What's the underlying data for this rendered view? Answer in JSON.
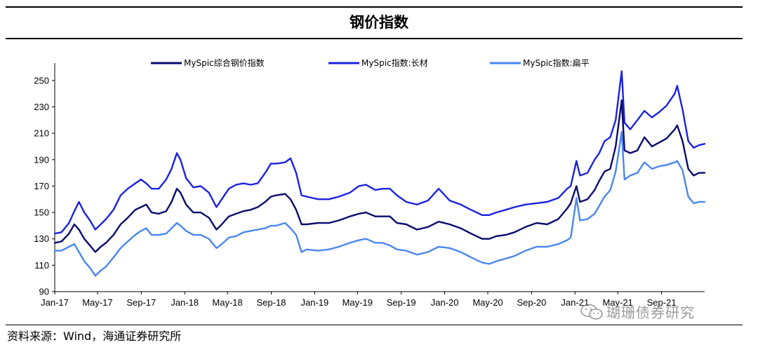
{
  "page": {
    "title": "钢价指数",
    "source": "资料来源：Wind，海通证券研究所",
    "watermark": "瑚珊债券研究"
  },
  "colors": {
    "composite": "#0a0a6e",
    "long": "#1a22e0",
    "flat": "#4a86f0"
  },
  "chart_data": {
    "type": "line",
    "x_type": "date",
    "xlim": [
      "2017-01-01",
      "2021-12-31"
    ],
    "x_ticks": [
      "Jan-17",
      "May-17",
      "Sep-17",
      "Jan-18",
      "May-18",
      "Sep-18",
      "Jan-19",
      "May-19",
      "Sep-19",
      "Jan-20",
      "May-20",
      "Sep-20",
      "Jan-21",
      "May-21",
      "Sep-21"
    ],
    "ylim": [
      90,
      260
    ],
    "y_ticks": [
      90,
      110,
      130,
      150,
      170,
      190,
      210,
      230,
      250
    ],
    "legend_position": "top",
    "series": [
      {
        "name": "MySpic综合钢价指数",
        "color_key": "composite",
        "points": [
          [
            "2017-01-01",
            127
          ],
          [
            "2017-01-20",
            128
          ],
          [
            "2017-02-10",
            134
          ],
          [
            "2017-02-25",
            141
          ],
          [
            "2017-03-10",
            137
          ],
          [
            "2017-03-25",
            130
          ],
          [
            "2017-04-10",
            125
          ],
          [
            "2017-04-25",
            120
          ],
          [
            "2017-05-10",
            124
          ],
          [
            "2017-05-25",
            127
          ],
          [
            "2017-06-15",
            133
          ],
          [
            "2017-07-05",
            141
          ],
          [
            "2017-07-25",
            146
          ],
          [
            "2017-08-15",
            152
          ],
          [
            "2017-08-31",
            154
          ],
          [
            "2017-09-15",
            156
          ],
          [
            "2017-09-30",
            150
          ],
          [
            "2017-10-20",
            149
          ],
          [
            "2017-11-10",
            151
          ],
          [
            "2017-11-25",
            158
          ],
          [
            "2017-12-10",
            168
          ],
          [
            "2017-12-20",
            165
          ],
          [
            "2018-01-05",
            156
          ],
          [
            "2018-01-25",
            150
          ],
          [
            "2018-02-15",
            150
          ],
          [
            "2018-03-10",
            146
          ],
          [
            "2018-03-31",
            137
          ],
          [
            "2018-04-15",
            141
          ],
          [
            "2018-05-05",
            147
          ],
          [
            "2018-05-25",
            149
          ],
          [
            "2018-06-15",
            151
          ],
          [
            "2018-07-05",
            152
          ],
          [
            "2018-07-25",
            154
          ],
          [
            "2018-08-15",
            158
          ],
          [
            "2018-08-31",
            162
          ],
          [
            "2018-09-15",
            163
          ],
          [
            "2018-10-10",
            164
          ],
          [
            "2018-10-25",
            160
          ],
          [
            "2018-11-10",
            152
          ],
          [
            "2018-11-25",
            141
          ],
          [
            "2018-12-10",
            141
          ],
          [
            "2019-01-10",
            142
          ],
          [
            "2019-02-10",
            142
          ],
          [
            "2019-03-10",
            144
          ],
          [
            "2019-04-10",
            147
          ],
          [
            "2019-05-05",
            149
          ],
          [
            "2019-05-25",
            150
          ],
          [
            "2019-06-20",
            147
          ],
          [
            "2019-07-10",
            147
          ],
          [
            "2019-07-31",
            147
          ],
          [
            "2019-08-20",
            142
          ],
          [
            "2019-09-15",
            141
          ],
          [
            "2019-10-15",
            137
          ],
          [
            "2019-11-15",
            139
          ],
          [
            "2019-12-15",
            143
          ],
          [
            "2020-01-15",
            141
          ],
          [
            "2020-02-15",
            138
          ],
          [
            "2020-03-15",
            134
          ],
          [
            "2020-04-15",
            130
          ],
          [
            "2020-05-05",
            130
          ],
          [
            "2020-05-25",
            132
          ],
          [
            "2020-06-20",
            133
          ],
          [
            "2020-07-15",
            135
          ],
          [
            "2020-08-15",
            139
          ],
          [
            "2020-09-15",
            142
          ],
          [
            "2020-10-15",
            141
          ],
          [
            "2020-11-15",
            145
          ],
          [
            "2020-12-10",
            153
          ],
          [
            "2020-12-20",
            157
          ],
          [
            "2021-01-05",
            170
          ],
          [
            "2021-01-15",
            158
          ],
          [
            "2021-02-05",
            160
          ],
          [
            "2021-02-25",
            167
          ],
          [
            "2021-03-10",
            174
          ],
          [
            "2021-03-25",
            181
          ],
          [
            "2021-04-10",
            183
          ],
          [
            "2021-04-25",
            200
          ],
          [
            "2021-05-12",
            235
          ],
          [
            "2021-05-20",
            197
          ],
          [
            "2021-06-05",
            195
          ],
          [
            "2021-06-25",
            197
          ],
          [
            "2021-07-15",
            207
          ],
          [
            "2021-08-05",
            200
          ],
          [
            "2021-08-25",
            203
          ],
          [
            "2021-09-15",
            206
          ],
          [
            "2021-10-08",
            213
          ],
          [
            "2021-10-15",
            216
          ],
          [
            "2021-10-30",
            204
          ],
          [
            "2021-11-15",
            183
          ],
          [
            "2021-11-30",
            178
          ],
          [
            "2021-12-15",
            180
          ],
          [
            "2021-12-31",
            180
          ]
        ]
      },
      {
        "name": "MySpic指数:长材",
        "color_key": "long",
        "points": [
          [
            "2017-01-01",
            134
          ],
          [
            "2017-01-20",
            135
          ],
          [
            "2017-02-10",
            142
          ],
          [
            "2017-02-25",
            151
          ],
          [
            "2017-03-10",
            158
          ],
          [
            "2017-03-25",
            150
          ],
          [
            "2017-04-10",
            144
          ],
          [
            "2017-04-25",
            137
          ],
          [
            "2017-05-10",
            141
          ],
          [
            "2017-05-25",
            145
          ],
          [
            "2017-06-15",
            152
          ],
          [
            "2017-07-05",
            163
          ],
          [
            "2017-07-25",
            168
          ],
          [
            "2017-08-15",
            172
          ],
          [
            "2017-08-31",
            175
          ],
          [
            "2017-09-15",
            172
          ],
          [
            "2017-09-30",
            168
          ],
          [
            "2017-10-20",
            168
          ],
          [
            "2017-11-10",
            175
          ],
          [
            "2017-11-25",
            183
          ],
          [
            "2017-12-10",
            195
          ],
          [
            "2017-12-20",
            190
          ],
          [
            "2018-01-05",
            176
          ],
          [
            "2018-01-25",
            169
          ],
          [
            "2018-02-15",
            170
          ],
          [
            "2018-03-10",
            165
          ],
          [
            "2018-03-31",
            154
          ],
          [
            "2018-04-15",
            160
          ],
          [
            "2018-05-05",
            168
          ],
          [
            "2018-05-25",
            171
          ],
          [
            "2018-06-15",
            172
          ],
          [
            "2018-07-05",
            171
          ],
          [
            "2018-07-25",
            172
          ],
          [
            "2018-08-15",
            180
          ],
          [
            "2018-08-31",
            187
          ],
          [
            "2018-09-15",
            187
          ],
          [
            "2018-10-10",
            188
          ],
          [
            "2018-10-25",
            191
          ],
          [
            "2018-11-10",
            180
          ],
          [
            "2018-11-25",
            163
          ],
          [
            "2018-12-10",
            162
          ],
          [
            "2019-01-10",
            160
          ],
          [
            "2019-02-10",
            160
          ],
          [
            "2019-03-10",
            162
          ],
          [
            "2019-04-10",
            165
          ],
          [
            "2019-05-05",
            170
          ],
          [
            "2019-05-25",
            171
          ],
          [
            "2019-06-20",
            167
          ],
          [
            "2019-07-10",
            168
          ],
          [
            "2019-07-31",
            168
          ],
          [
            "2019-08-20",
            163
          ],
          [
            "2019-09-15",
            158
          ],
          [
            "2019-10-15",
            156
          ],
          [
            "2019-11-15",
            159
          ],
          [
            "2019-12-15",
            168
          ],
          [
            "2020-01-15",
            159
          ],
          [
            "2020-02-15",
            156
          ],
          [
            "2020-03-15",
            152
          ],
          [
            "2020-04-15",
            148
          ],
          [
            "2020-05-05",
            148
          ],
          [
            "2020-05-25",
            150
          ],
          [
            "2020-06-20",
            152
          ],
          [
            "2020-07-15",
            154
          ],
          [
            "2020-08-15",
            156
          ],
          [
            "2020-09-15",
            157
          ],
          [
            "2020-10-15",
            158
          ],
          [
            "2020-11-15",
            161
          ],
          [
            "2020-12-10",
            168
          ],
          [
            "2020-12-20",
            170
          ],
          [
            "2021-01-05",
            189
          ],
          [
            "2021-01-15",
            178
          ],
          [
            "2021-02-05",
            180
          ],
          [
            "2021-02-25",
            190
          ],
          [
            "2021-03-10",
            195
          ],
          [
            "2021-03-25",
            204
          ],
          [
            "2021-04-10",
            207
          ],
          [
            "2021-04-25",
            220
          ],
          [
            "2021-05-12",
            257
          ],
          [
            "2021-05-20",
            218
          ],
          [
            "2021-06-05",
            213
          ],
          [
            "2021-06-25",
            220
          ],
          [
            "2021-07-15",
            227
          ],
          [
            "2021-08-05",
            222
          ],
          [
            "2021-08-25",
            226
          ],
          [
            "2021-09-15",
            231
          ],
          [
            "2021-10-08",
            240
          ],
          [
            "2021-10-15",
            246
          ],
          [
            "2021-10-30",
            228
          ],
          [
            "2021-11-15",
            204
          ],
          [
            "2021-11-30",
            199
          ],
          [
            "2021-12-15",
            201
          ],
          [
            "2021-12-31",
            202
          ]
        ]
      },
      {
        "name": "MySpic指数:扁平",
        "color_key": "flat",
        "points": [
          [
            "2017-01-01",
            121
          ],
          [
            "2017-01-20",
            121
          ],
          [
            "2017-02-10",
            124
          ],
          [
            "2017-02-25",
            126
          ],
          [
            "2017-03-10",
            120
          ],
          [
            "2017-03-25",
            113
          ],
          [
            "2017-04-10",
            108
          ],
          [
            "2017-04-25",
            102
          ],
          [
            "2017-05-10",
            106
          ],
          [
            "2017-05-25",
            109
          ],
          [
            "2017-06-15",
            116
          ],
          [
            "2017-07-05",
            123
          ],
          [
            "2017-07-25",
            128
          ],
          [
            "2017-08-15",
            133
          ],
          [
            "2017-08-31",
            136
          ],
          [
            "2017-09-15",
            138
          ],
          [
            "2017-09-30",
            133
          ],
          [
            "2017-10-20",
            133
          ],
          [
            "2017-11-10",
            134
          ],
          [
            "2017-11-25",
            138
          ],
          [
            "2017-12-10",
            142
          ],
          [
            "2017-12-20",
            140
          ],
          [
            "2018-01-05",
            136
          ],
          [
            "2018-01-25",
            133
          ],
          [
            "2018-02-15",
            133
          ],
          [
            "2018-03-10",
            130
          ],
          [
            "2018-03-31",
            123
          ],
          [
            "2018-04-15",
            126
          ],
          [
            "2018-05-05",
            131
          ],
          [
            "2018-05-25",
            132
          ],
          [
            "2018-06-15",
            135
          ],
          [
            "2018-07-05",
            136
          ],
          [
            "2018-07-25",
            137
          ],
          [
            "2018-08-15",
            138
          ],
          [
            "2018-08-31",
            140
          ],
          [
            "2018-09-15",
            140
          ],
          [
            "2018-10-10",
            142
          ],
          [
            "2018-10-25",
            138
          ],
          [
            "2018-11-10",
            133
          ],
          [
            "2018-11-25",
            120
          ],
          [
            "2018-12-10",
            122
          ],
          [
            "2019-01-10",
            121
          ],
          [
            "2019-02-10",
            122
          ],
          [
            "2019-03-10",
            124
          ],
          [
            "2019-04-10",
            127
          ],
          [
            "2019-05-05",
            129
          ],
          [
            "2019-05-25",
            130
          ],
          [
            "2019-06-20",
            127
          ],
          [
            "2019-07-10",
            127
          ],
          [
            "2019-07-31",
            125
          ],
          [
            "2019-08-20",
            122
          ],
          [
            "2019-09-15",
            121
          ],
          [
            "2019-10-15",
            118
          ],
          [
            "2019-11-15",
            120
          ],
          [
            "2019-12-15",
            124
          ],
          [
            "2020-01-15",
            123
          ],
          [
            "2020-02-15",
            120
          ],
          [
            "2020-03-15",
            116
          ],
          [
            "2020-04-15",
            112
          ],
          [
            "2020-05-05",
            111
          ],
          [
            "2020-05-25",
            113
          ],
          [
            "2020-06-20",
            115
          ],
          [
            "2020-07-15",
            117
          ],
          [
            "2020-08-15",
            121
          ],
          [
            "2020-09-15",
            124
          ],
          [
            "2020-10-15",
            124
          ],
          [
            "2020-11-15",
            126
          ],
          [
            "2020-12-10",
            129
          ],
          [
            "2020-12-20",
            131
          ],
          [
            "2021-01-05",
            161
          ],
          [
            "2021-01-15",
            144
          ],
          [
            "2021-02-05",
            145
          ],
          [
            "2021-02-25",
            149
          ],
          [
            "2021-03-10",
            155
          ],
          [
            "2021-03-25",
            162
          ],
          [
            "2021-04-10",
            167
          ],
          [
            "2021-04-25",
            181
          ],
          [
            "2021-05-12",
            211
          ],
          [
            "2021-05-20",
            175
          ],
          [
            "2021-06-05",
            178
          ],
          [
            "2021-06-25",
            180
          ],
          [
            "2021-07-15",
            188
          ],
          [
            "2021-08-05",
            183
          ],
          [
            "2021-08-25",
            185
          ],
          [
            "2021-09-15",
            186
          ],
          [
            "2021-10-08",
            188
          ],
          [
            "2021-10-15",
            189
          ],
          [
            "2021-10-30",
            182
          ],
          [
            "2021-11-15",
            162
          ],
          [
            "2021-11-30",
            157
          ],
          [
            "2021-12-15",
            158
          ],
          [
            "2021-12-31",
            158
          ]
        ]
      }
    ]
  }
}
